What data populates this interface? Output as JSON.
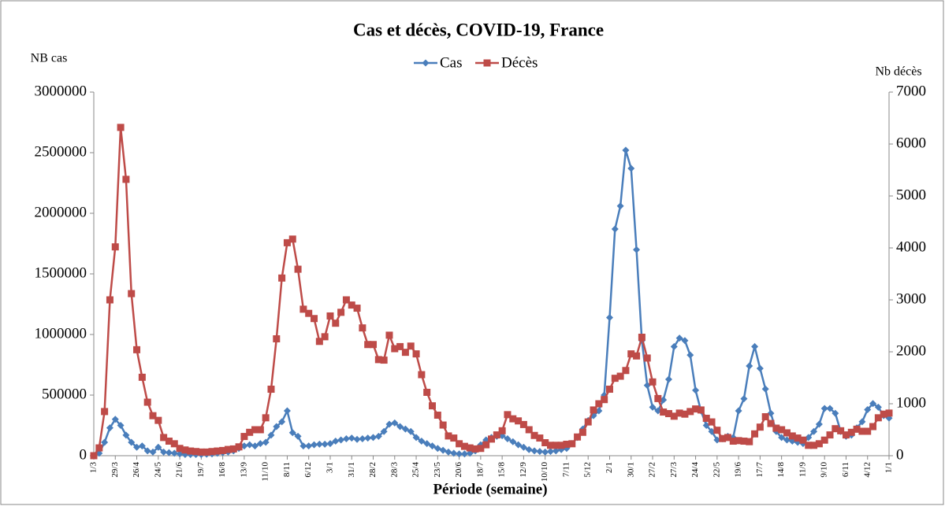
{
  "chart_data": {
    "type": "line",
    "title": "Cas et décès, COVID-19, France",
    "y_label": "NB cas",
    "y2_label": "Nb décès",
    "x_label": "Période (semaine)",
    "categories": [
      "1/3",
      null,
      null,
      null,
      "29/3",
      null,
      null,
      null,
      "26/4",
      null,
      null,
      null,
      "24/5",
      null,
      null,
      null,
      "21/6",
      null,
      null,
      null,
      "19/7",
      null,
      null,
      null,
      "16/8",
      null,
      null,
      null,
      "13/9",
      null,
      null,
      null,
      "11/10",
      null,
      null,
      null,
      "8/11",
      null,
      null,
      null,
      "6/12",
      null,
      null,
      null,
      "3/1",
      null,
      null,
      null,
      "31/1",
      null,
      null,
      null,
      "28/2",
      null,
      null,
      null,
      "28/3",
      null,
      null,
      null,
      "25/4",
      null,
      null,
      null,
      "23/5",
      null,
      null,
      null,
      "20/6",
      null,
      null,
      null,
      "18/7",
      null,
      null,
      null,
      "15/8",
      null,
      null,
      null,
      "12/9",
      null,
      null,
      null,
      "10/10",
      null,
      null,
      null,
      "7/11",
      null,
      null,
      null,
      "5/12",
      null,
      null,
      null,
      "2/1",
      null,
      null,
      null,
      "30/1",
      null,
      null,
      null,
      "27/2",
      null,
      null,
      null,
      "27/3",
      null,
      null,
      null,
      "24/4",
      null,
      null,
      null,
      "22/5",
      null,
      null,
      null,
      "19/6",
      null,
      null,
      null,
      "17/7",
      null,
      null,
      null,
      "14/8",
      null,
      null,
      null,
      "11/9",
      null,
      null,
      null,
      "9/10",
      null,
      null,
      null,
      "6/11",
      null,
      null,
      null,
      "4/12",
      null,
      null,
      null,
      "1/1"
    ],
    "series": [
      {
        "name": "Cas",
        "color": "#4a7ebb",
        "marker": "diamond",
        "values": [
          0,
          20000,
          110000,
          230000,
          300000,
          250000,
          170000,
          110000,
          70000,
          80000,
          40000,
          30000,
          70000,
          30000,
          25000,
          20000,
          15000,
          10000,
          10000,
          10000,
          10000,
          12000,
          15000,
          20000,
          25000,
          30000,
          40000,
          60000,
          80000,
          90000,
          80000,
          100000,
          110000,
          170000,
          240000,
          280000,
          370000,
          190000,
          160000,
          80000,
          80000,
          90000,
          95000,
          95000,
          100000,
          120000,
          130000,
          140000,
          145000,
          135000,
          140000,
          145000,
          150000,
          160000,
          200000,
          260000,
          270000,
          240000,
          220000,
          200000,
          150000,
          120000,
          100000,
          80000,
          60000,
          45000,
          30000,
          20000,
          15000,
          15000,
          20000,
          40000,
          90000,
          130000,
          150000,
          160000,
          165000,
          140000,
          115000,
          90000,
          70000,
          50000,
          40000,
          35000,
          30000,
          35000,
          40000,
          50000,
          60000,
          100000,
          150000,
          220000,
          290000,
          330000,
          370000,
          500000,
          1140000,
          1870000,
          2060000,
          2520000,
          2370000,
          1700000,
          950000,
          580000,
          400000,
          370000,
          460000,
          630000,
          900000,
          970000,
          950000,
          830000,
          540000,
          370000,
          250000,
          200000,
          130000,
          140000,
          160000,
          150000,
          370000,
          470000,
          740000,
          900000,
          720000,
          550000,
          350000,
          200000,
          150000,
          130000,
          120000,
          110000,
          100000,
          150000,
          200000,
          260000,
          390000,
          390000,
          350000,
          200000,
          160000,
          170000,
          230000,
          280000,
          380000,
          430000,
          400000,
          330000,
          310000
        ]
      },
      {
        "name": "Décès",
        "color": "#be4b48",
        "marker": "square",
        "axis": "y2",
        "values": [
          0,
          150,
          850,
          3000,
          4020,
          6320,
          5320,
          3120,
          2040,
          1510,
          1030,
          770,
          680,
          350,
          280,
          230,
          140,
          110,
          90,
          80,
          70,
          70,
          80,
          90,
          100,
          120,
          130,
          170,
          370,
          450,
          500,
          500,
          730,
          1280,
          2250,
          3420,
          4100,
          4170,
          3590,
          2820,
          2740,
          2640,
          2200,
          2290,
          2690,
          2550,
          2760,
          3000,
          2900,
          2840,
          2460,
          2140,
          2140,
          1850,
          1840,
          2320,
          2060,
          2100,
          1990,
          2110,
          1960,
          1560,
          1220,
          960,
          780,
          590,
          380,
          340,
          230,
          180,
          150,
          130,
          140,
          210,
          320,
          400,
          480,
          790,
          710,
          670,
          600,
          500,
          390,
          340,
          250,
          200,
          200,
          200,
          220,
          230,
          360,
          450,
          650,
          880,
          1000,
          1080,
          1280,
          1490,
          1530,
          1640,
          1960,
          1920,
          2280,
          1880,
          1420,
          1100,
          840,
          810,
          760,
          820,
          800,
          850,
          900,
          880,
          720,
          650,
          490,
          330,
          350,
          280,
          290,
          280,
          270,
          420,
          550,
          750,
          620,
          530,
          500,
          440,
          380,
          340,
          300,
          200,
          200,
          230,
          300,
          400,
          520,
          480,
          400,
          450,
          510,
          470,
          470,
          560,
          730,
          800,
          820
        ]
      }
    ],
    "ylim": [
      0,
      3000000
    ],
    "yticks": [
      0,
      500000,
      1000000,
      1500000,
      2000000,
      2500000,
      3000000
    ],
    "y2lim": [
      0,
      7000
    ],
    "y2ticks": [
      0,
      1000,
      2000,
      3000,
      4000,
      5000,
      6000,
      7000
    ],
    "legend": "top"
  }
}
